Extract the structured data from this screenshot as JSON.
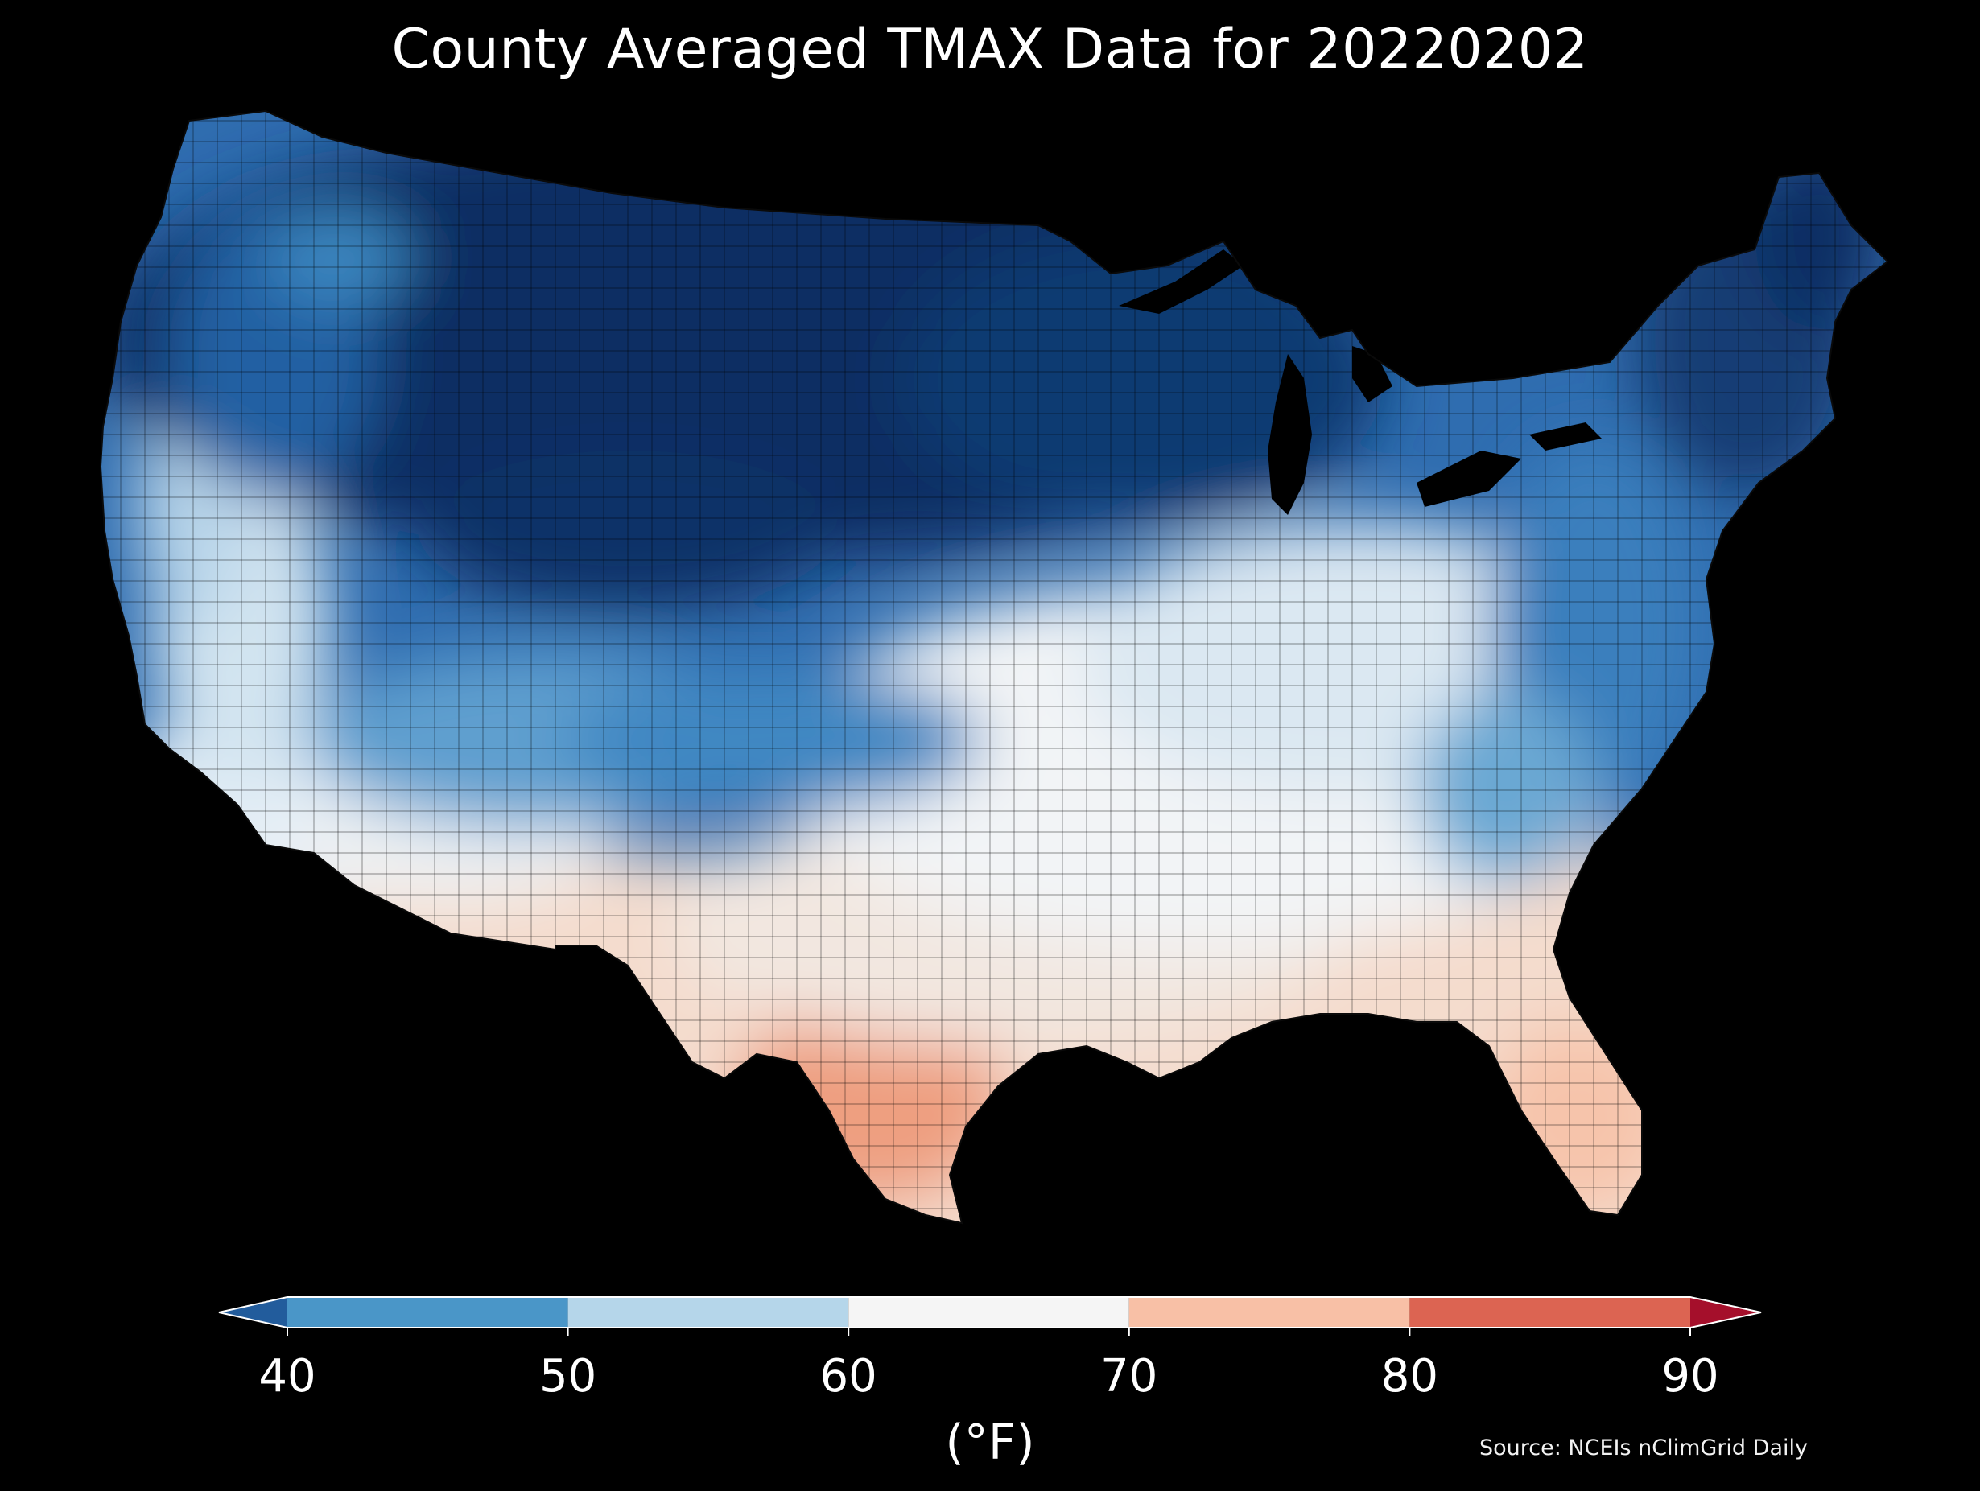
{
  "title": "County Averaged TMAX Data for 20220202",
  "colorbar": {
    "ticks": [
      "40",
      "50",
      "60",
      "70",
      "80",
      "90"
    ],
    "tick_values": [
      40,
      50,
      60,
      70,
      80,
      90
    ],
    "unit_label": "(°F)",
    "extend": "both",
    "bins": [
      {
        "from": null,
        "to": 40,
        "color": "#225c9c"
      },
      {
        "from": 40,
        "to": 50,
        "color": "#4a96c8"
      },
      {
        "from": 50,
        "to": 60,
        "color": "#b5d6ea"
      },
      {
        "from": 60,
        "to": 70,
        "color": "#f5f5f5"
      },
      {
        "from": 70,
        "to": 80,
        "color": "#f8c0a6"
      },
      {
        "from": 80,
        "to": 90,
        "color": "#dc6452"
      },
      {
        "from": 90,
        "to": null,
        "color": "#a50f2b"
      }
    ]
  },
  "source": "Source: NCEIs nClimGrid Daily",
  "map": {
    "region": "Contiguous United States, county level",
    "background": "#000000",
    "county_border_color": "#1a1a1a"
  }
}
